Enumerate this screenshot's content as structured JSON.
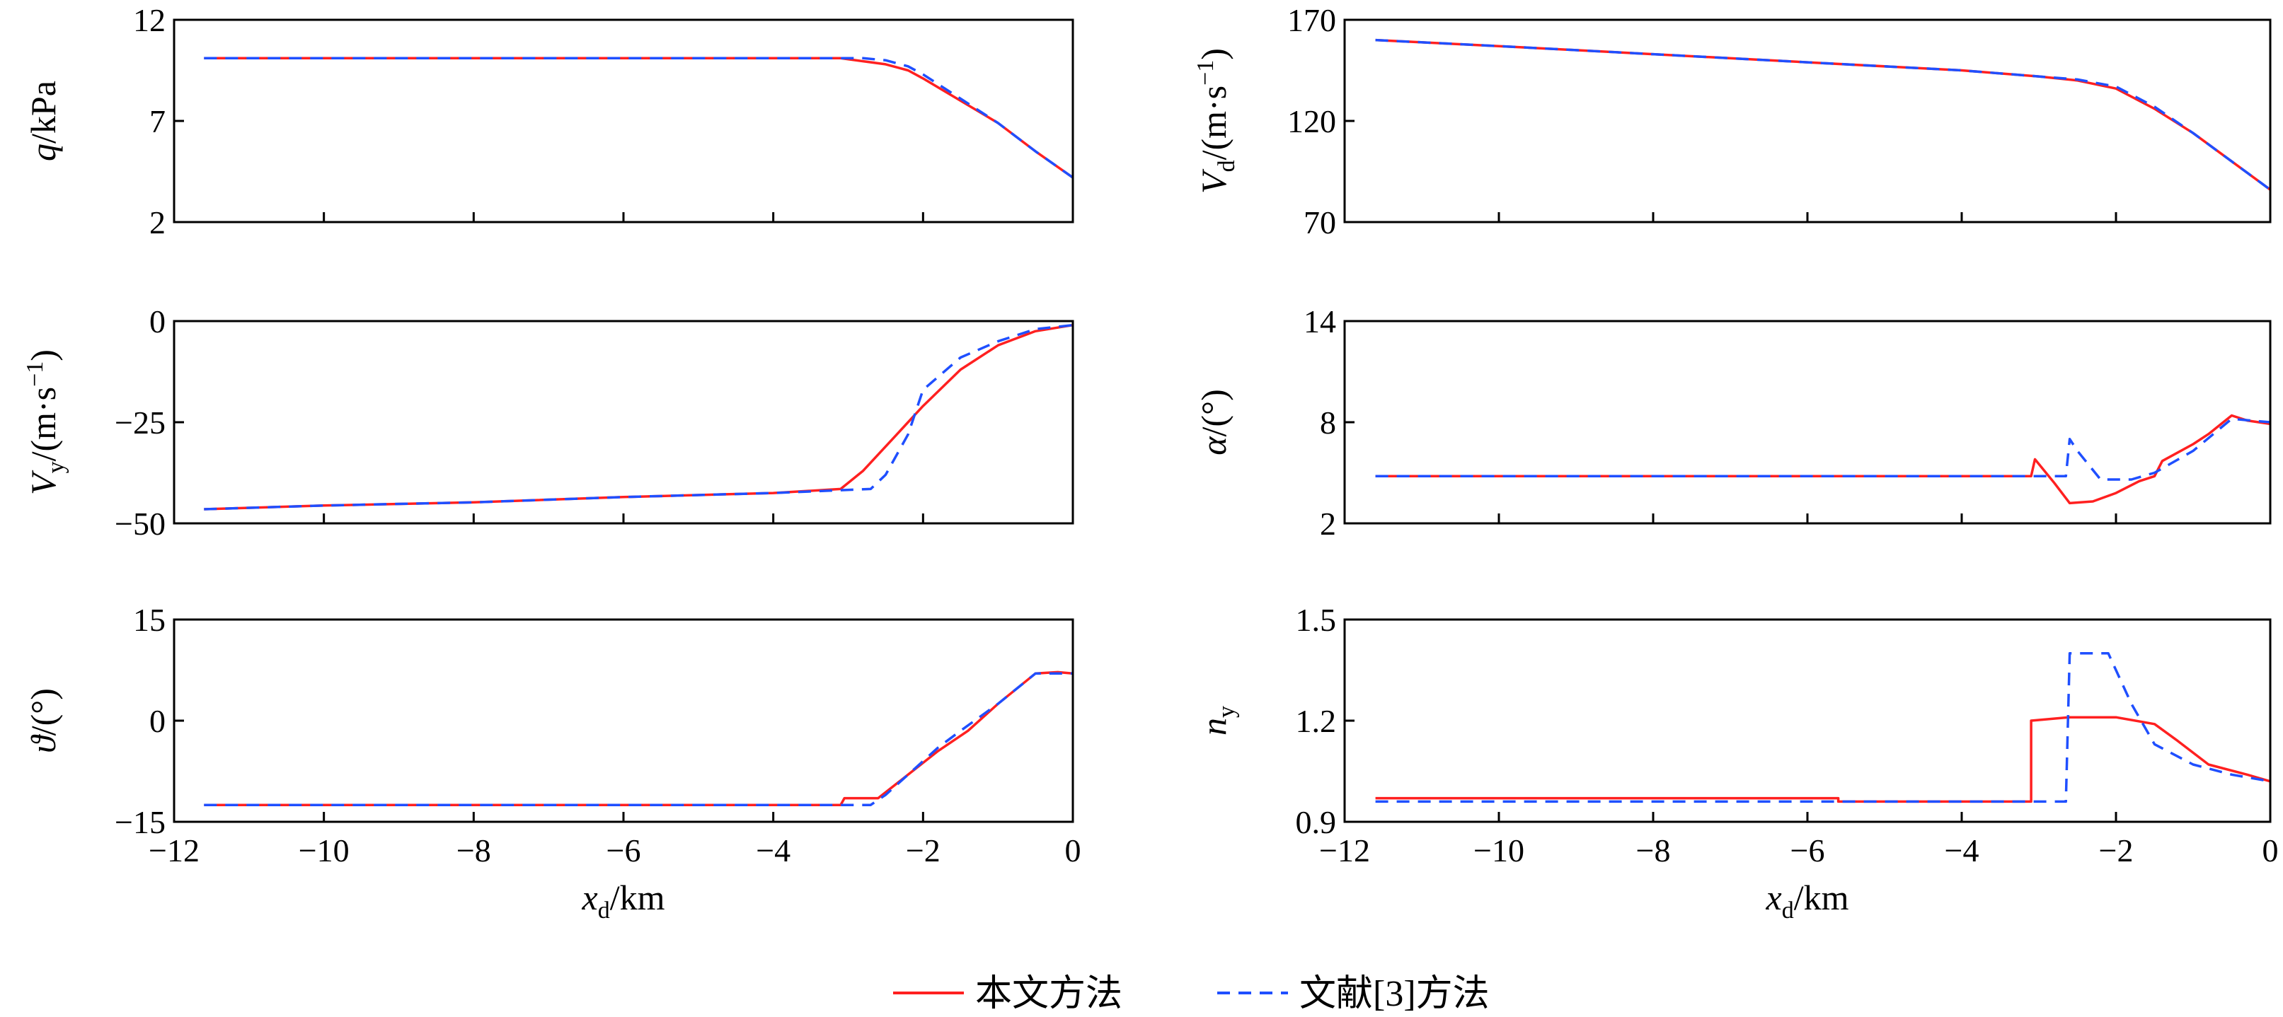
{
  "legend": {
    "placement": "bottom-center",
    "items": [
      {
        "label": "本文方法",
        "color": "#ff2020",
        "dash": "solid"
      },
      {
        "label": "文献[3]方法",
        "color": "#1f4fff",
        "dash": "dashed"
      }
    ]
  },
  "chart_data": [
    {
      "id": "q",
      "type": "line",
      "panel": "top-left",
      "xlabel": {
        "main": "",
        "sub": "",
        "unit": ""
      },
      "ylabel": {
        "main": "q",
        "sub": "",
        "unit": "/kPa"
      },
      "xlim": [
        -12,
        0
      ],
      "ylim": [
        2,
        12
      ],
      "xticks": [
        -12,
        -10,
        -8,
        -6,
        -4,
        -2,
        0
      ],
      "xtick_labels": [
        "",
        "",
        "",
        "",
        "",
        "",
        ""
      ],
      "yticks": [
        2,
        7,
        12
      ],
      "ytick_labels": [
        "2",
        "7",
        "12"
      ],
      "series": [
        {
          "name": "本文方法",
          "x": [
            -11.6,
            -3.1,
            -2.8,
            -2.5,
            -2.2,
            -2.0,
            -1.5,
            -1.0,
            -0.5,
            0.0
          ],
          "y": [
            10.1,
            10.1,
            9.95,
            9.8,
            9.5,
            9.1,
            8.0,
            6.9,
            5.5,
            4.2
          ]
        },
        {
          "name": "文献[3]方法",
          "x": [
            -11.6,
            -2.8,
            -2.5,
            -2.2,
            -2.0,
            -1.5,
            -1.0,
            -0.5,
            0.0
          ],
          "y": [
            10.1,
            10.1,
            10.0,
            9.7,
            9.3,
            8.1,
            6.9,
            5.5,
            4.2
          ]
        }
      ]
    },
    {
      "id": "Vd",
      "type": "line",
      "panel": "top-right",
      "xlabel": {
        "main": "",
        "sub": "",
        "unit": ""
      },
      "ylabel": {
        "main": "V",
        "sub": "d",
        "unit": "/(m·s",
        "sup": "−1",
        "close": ")"
      },
      "xlim": [
        -12,
        0
      ],
      "ylim": [
        70,
        170
      ],
      "xticks": [
        -12,
        -10,
        -8,
        -6,
        -4,
        -2,
        0
      ],
      "xtick_labels": [
        "",
        "",
        "",
        "",
        "",
        "",
        ""
      ],
      "yticks": [
        70,
        120,
        170
      ],
      "ytick_labels": [
        "70",
        "120",
        "170"
      ],
      "series": [
        {
          "name": "本文方法",
          "x": [
            -11.6,
            -10,
            -8,
            -6,
            -4,
            -3,
            -2.5,
            -2.0,
            -1.5,
            -1.0,
            -0.5,
            0.0
          ],
          "y": [
            160,
            157,
            153,
            149,
            145,
            142,
            140,
            136,
            126,
            114,
            100,
            86
          ]
        },
        {
          "name": "文献[3]方法",
          "x": [
            -11.6,
            -10,
            -8,
            -6,
            -4,
            -3,
            -2.5,
            -2.0,
            -1.5,
            -1.0,
            -0.5,
            0.0
          ],
          "y": [
            160,
            157,
            153,
            149,
            145,
            142,
            140.5,
            137,
            127,
            114,
            100,
            86
          ]
        }
      ]
    },
    {
      "id": "Vy",
      "type": "line",
      "panel": "middle-left",
      "xlabel": {
        "main": "",
        "sub": "",
        "unit": ""
      },
      "ylabel": {
        "main": "V",
        "sub": "y",
        "unit": "/(m·s",
        "sup": "−1",
        "close": ")"
      },
      "xlim": [
        -12,
        0
      ],
      "ylim": [
        -50,
        0
      ],
      "xticks": [
        -12,
        -10,
        -8,
        -6,
        -4,
        -2,
        0
      ],
      "xtick_labels": [
        "",
        "",
        "",
        "",
        "",
        "",
        ""
      ],
      "yticks": [
        -50,
        -25,
        0
      ],
      "ytick_labels": [
        "−50",
        "−25",
        "0"
      ],
      "series": [
        {
          "name": "本文方法",
          "x": [
            -11.6,
            -10,
            -8,
            -6,
            -4,
            -3.1,
            -2.8,
            -2.4,
            -2.0,
            -1.5,
            -1.0,
            -0.5,
            0.0
          ],
          "y": [
            -46.5,
            -45.6,
            -44.8,
            -43.5,
            -42.5,
            -41.5,
            -37,
            -29,
            -21,
            -12,
            -6,
            -2.5,
            -1
          ]
        },
        {
          "name": "文献[3]方法",
          "x": [
            -11.6,
            -10,
            -8,
            -6,
            -4,
            -2.7,
            -2.5,
            -2.2,
            -2.0,
            -1.5,
            -1.0,
            -0.5,
            0.0
          ],
          "y": [
            -46.5,
            -45.6,
            -44.8,
            -43.5,
            -42.5,
            -41.5,
            -38,
            -28,
            -17,
            -9,
            -5,
            -2,
            -1
          ]
        }
      ]
    },
    {
      "id": "alpha",
      "type": "line",
      "panel": "middle-right",
      "xlabel": {
        "main": "",
        "sub": "",
        "unit": ""
      },
      "ylabel": {
        "main": "α",
        "sub": "",
        "unit": "/(°)"
      },
      "xlim": [
        -12,
        0
      ],
      "ylim": [
        2,
        14
      ],
      "xticks": [
        -12,
        -10,
        -8,
        -6,
        -4,
        -2,
        0
      ],
      "xtick_labels": [
        "",
        "",
        "",
        "",
        "",
        "",
        ""
      ],
      "yticks": [
        2,
        8,
        14
      ],
      "ytick_labels": [
        "2",
        "8",
        "14"
      ],
      "series": [
        {
          "name": "本文方法",
          "x": [
            -11.6,
            -3.1,
            -3.05,
            -2.8,
            -2.6,
            -2.3,
            -2.0,
            -1.7,
            -1.5,
            -1.4,
            -1.0,
            -0.8,
            -0.5,
            -0.3,
            0.0
          ],
          "y": [
            4.8,
            4.8,
            5.8,
            4.4,
            3.2,
            3.3,
            3.8,
            4.5,
            4.8,
            5.7,
            6.7,
            7.3,
            8.4,
            8.1,
            7.9
          ]
        },
        {
          "name": "文献[3]方法",
          "x": [
            -11.6,
            -2.65,
            -2.6,
            -2.5,
            -2.2,
            -1.8,
            -1.5,
            -1.0,
            -0.5,
            0.0
          ],
          "y": [
            4.8,
            4.8,
            7.0,
            6.3,
            4.6,
            4.6,
            5.0,
            6.3,
            8.2,
            8.0
          ]
        }
      ]
    },
    {
      "id": "theta",
      "type": "line",
      "panel": "bottom-left",
      "xlabel": {
        "main": "x",
        "sub": "d",
        "unit": "/km"
      },
      "ylabel": {
        "main": "ϑ",
        "sub": "",
        "unit": "/(°)"
      },
      "xlim": [
        -12,
        0
      ],
      "ylim": [
        -15,
        15
      ],
      "xticks": [
        -12,
        -10,
        -8,
        -6,
        -4,
        -2,
        0
      ],
      "xtick_labels": [
        "−12",
        "−10",
        "−8",
        "−6",
        "−4",
        "−2",
        "0"
      ],
      "yticks": [
        -15,
        0,
        15
      ],
      "ytick_labels": [
        "−15",
        "0",
        "15"
      ],
      "series": [
        {
          "name": "本文方法",
          "x": [
            -11.6,
            -3.1,
            -3.05,
            -2.6,
            -2.2,
            -1.8,
            -1.4,
            -1.0,
            -0.5,
            -0.2,
            0.0
          ],
          "y": [
            -12.5,
            -12.5,
            -11.5,
            -11.5,
            -8,
            -4.5,
            -1.5,
            2.5,
            7,
            7.2,
            7
          ]
        },
        {
          "name": "文献[3]方法",
          "x": [
            -11.6,
            -2.7,
            -2.5,
            -2.2,
            -1.8,
            -1.5,
            -1.0,
            -0.5,
            0.0
          ],
          "y": [
            -12.5,
            -12.5,
            -11,
            -8,
            -4,
            -1.5,
            2.5,
            7,
            7
          ]
        }
      ]
    },
    {
      "id": "ny",
      "type": "line",
      "panel": "bottom-right",
      "xlabel": {
        "main": "x",
        "sub": "d",
        "unit": "/km"
      },
      "ylabel": {
        "main": "n",
        "sub": "y",
        "unit": ""
      },
      "xlim": [
        -12,
        0
      ],
      "ylim": [
        0.9,
        1.5
      ],
      "xticks": [
        -12,
        -10,
        -8,
        -6,
        -4,
        -2,
        0
      ],
      "xtick_labels": [
        "−12",
        "−10",
        "−8",
        "−6",
        "−4",
        "−2",
        "0"
      ],
      "yticks": [
        0.9,
        1.2,
        1.5
      ],
      "ytick_labels": [
        "0.9",
        "1.2",
        "1.5"
      ],
      "series": [
        {
          "name": "本文方法",
          "x": [
            -11.6,
            -5.6,
            -5.6,
            -3.1,
            -3.1,
            -2.6,
            -2.0,
            -1.5,
            -1.2,
            -0.8,
            -0.3,
            0.0
          ],
          "y": [
            0.97,
            0.97,
            0.96,
            0.96,
            1.2,
            1.21,
            1.21,
            1.19,
            1.14,
            1.07,
            1.04,
            1.02
          ]
        },
        {
          "name": "文献[3]方法",
          "x": [
            -11.6,
            -2.65,
            -2.6,
            -2.1,
            -1.8,
            -1.5,
            -1.0,
            -0.5,
            0.0
          ],
          "y": [
            0.96,
            0.96,
            1.4,
            1.4,
            1.25,
            1.13,
            1.07,
            1.04,
            1.02
          ]
        }
      ]
    }
  ]
}
